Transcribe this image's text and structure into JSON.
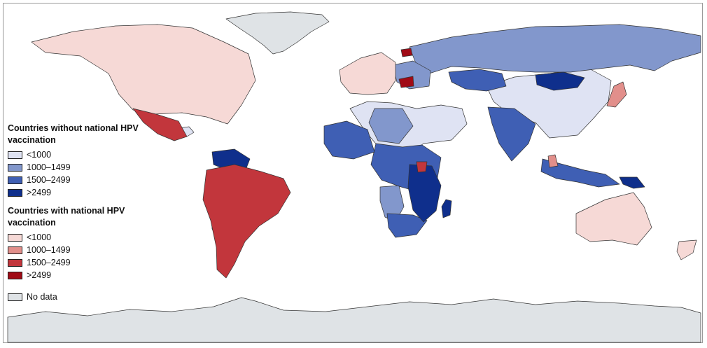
{
  "legend": {
    "group_without": {
      "title": "Countries without national HPV vaccination",
      "items": [
        {
          "label": "<1000",
          "color": "#dfe3f3"
        },
        {
          "label": "1000–1499",
          "color": "#8297cc"
        },
        {
          "label": "1500–2499",
          "color": "#3f5fb4"
        },
        {
          "label": ">2499",
          "color": "#0f2f8c"
        }
      ]
    },
    "group_with": {
      "title": "Countries with national HPV vaccination",
      "items": [
        {
          "label": "<1000",
          "color": "#f6d9d6"
        },
        {
          "label": "1000–1499",
          "color": "#e28f8b"
        },
        {
          "label": "1500–2499",
          "color": "#c2363c"
        },
        {
          "label": ">2499",
          "color": "#a00b16"
        }
      ]
    },
    "no_data": {
      "label": "No data",
      "color": "#dfe3e6"
    }
  },
  "map_colors": {
    "ocean": "#ffffff",
    "border": "#333333"
  }
}
